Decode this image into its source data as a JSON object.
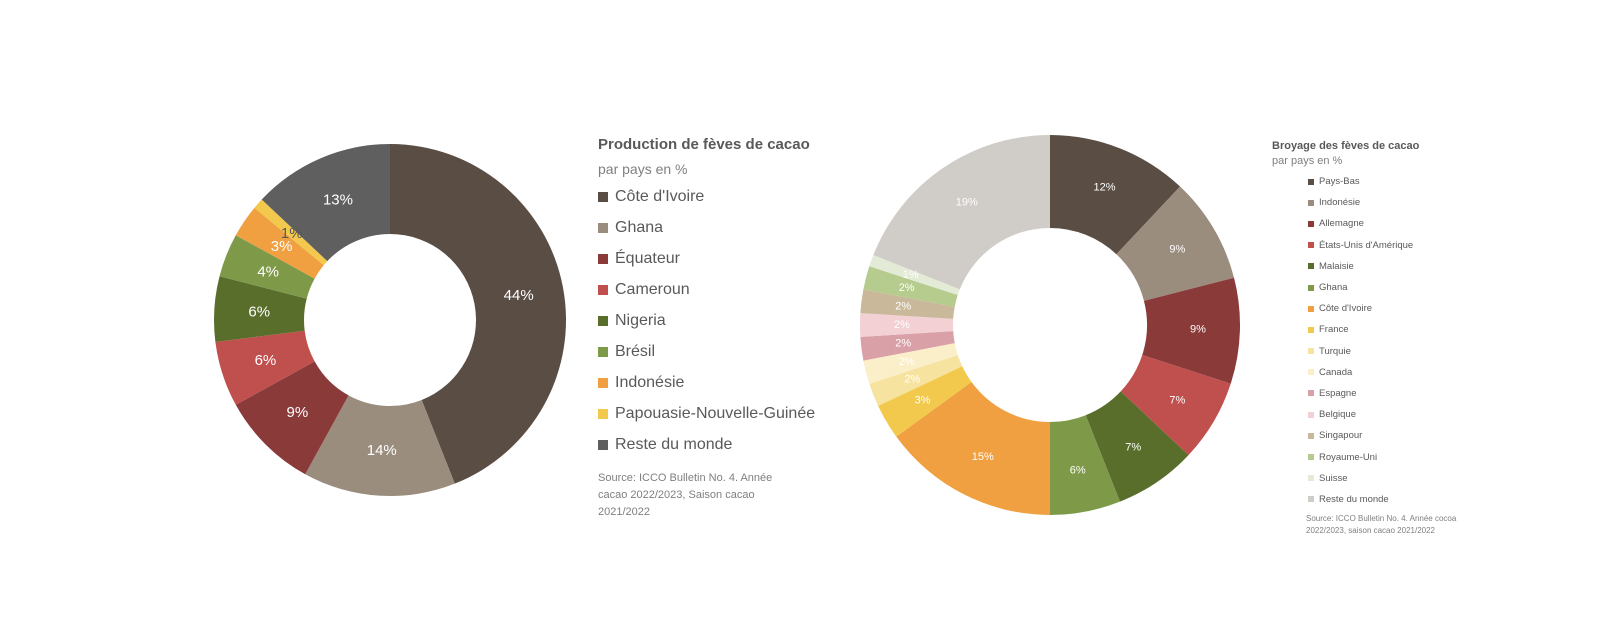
{
  "chart_data": [
    {
      "type": "pie",
      "title": "Production de fèves de cacao",
      "subtitle": "par pays en %",
      "source": "Source: ICCO Bulletin No. 4. Année cacao  2022/2023,  Saison cacao 2021/2022",
      "categories": [
        "Côte d'Ivoire",
        "Ghana",
        "Équateur",
        "Cameroun",
        "Nigeria",
        "Brésil",
        "Indonésie",
        "Papouasie-Nouvelle-Guinée",
        "Reste du monde"
      ],
      "values": [
        44,
        14,
        9,
        6,
        6,
        4,
        3,
        1,
        13
      ],
      "labels": [
        "44%",
        "14%",
        "9%",
        "6%",
        "6%",
        "4%",
        "3%",
        "1%",
        "13%"
      ],
      "colors": [
        "#5a4d44",
        "#9b8d7e",
        "#8b3a3a",
        "#c0504d",
        "#5a6e2b",
        "#7e9a48",
        "#f0a040",
        "#f2c94c",
        "#5f5f5f"
      ],
      "legend": "right"
    },
    {
      "type": "pie",
      "title": "Broyage des fèves de cacao",
      "subtitle": "par pays en %",
      "source": "Source: ICCO Bulletin No. 4. Année cocoa 2022/2023, saison cacao 2021/2022",
      "categories": [
        "Pays-Bas",
        "Indonésie",
        "Allemagne",
        "États-Unis d'Amérique",
        "Malaisie",
        "Ghana",
        "Côte d'Ivoire",
        "France",
        "Turquie",
        "Canada",
        "Espagne",
        "Belgique",
        "Singapour",
        "Royaume-Uni",
        "Suisse",
        "Reste du monde"
      ],
      "values": [
        12,
        9,
        9,
        7,
        7,
        6,
        15,
        3,
        2,
        2,
        2,
        2,
        2,
        2,
        1,
        19
      ],
      "labels": [
        "12%",
        "9%",
        "9%",
        "7%",
        "7%",
        "6%",
        "15%",
        "3%",
        "2%",
        "2%",
        "2%",
        "2%",
        "2%",
        "2%",
        "1%",
        "19%"
      ],
      "colors": [
        "#5a4d44",
        "#9b8d7e",
        "#8b3a3a",
        "#c0504d",
        "#5a6e2b",
        "#7e9a48",
        "#f0a040",
        "#f2c94c",
        "#f7e3a0",
        "#fbefc9",
        "#d9a0a8",
        "#f2d0d4",
        "#c9b99a",
        "#b5cc8e",
        "#e3ead6",
        "#d0ccc7"
      ],
      "legend": "right"
    }
  ]
}
